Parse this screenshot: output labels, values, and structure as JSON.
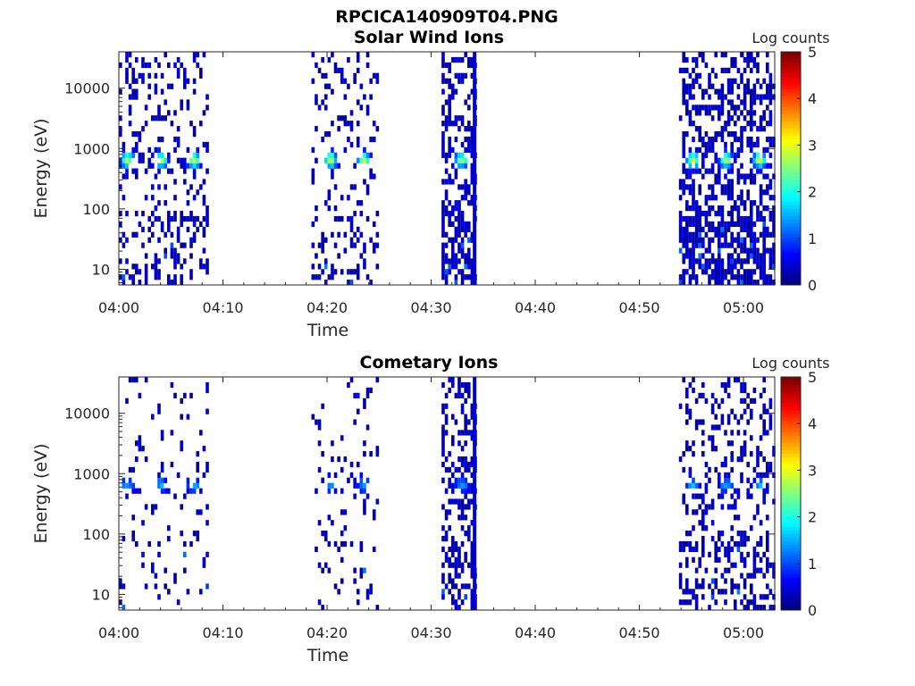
{
  "figure_title": "RPCICA140909T04.PNG",
  "chart_data": [
    {
      "type": "heatmap",
      "title": "Solar Wind Ions",
      "xlabel": "Time",
      "ylabel": "Energy (eV)",
      "x_ticks": [
        "04:00",
        "04:10",
        "04:20",
        "04:30",
        "04:40",
        "04:50",
        "05:00"
      ],
      "x_range_minutes": [
        0,
        63
      ],
      "y_scale": "log",
      "y_range": [
        5.5,
        40000
      ],
      "y_ticks": [
        {
          "value": 10,
          "label": "10"
        },
        {
          "value": 100,
          "label": "100"
        },
        {
          "value": 1000,
          "label": "1000"
        },
        {
          "value": 10000,
          "label": "10000"
        }
      ],
      "colorbar": {
        "label": "Log counts",
        "range": [
          0,
          5
        ],
        "ticks": [
          "0",
          "1",
          "2",
          "3",
          "4",
          "5"
        ],
        "colormap": "jet"
      },
      "bursts": [
        {
          "start_min": 0.0,
          "end_min": 8.5,
          "peaks_min": [
            0.7,
            3.9,
            7.1
          ],
          "peak_energy": 650,
          "peak_level": 2.5,
          "density": 0.35
        },
        {
          "start_min": 18.5,
          "end_min": 25.0,
          "peaks_min": [
            20.2,
            23.4
          ],
          "peak_energy": 650,
          "peak_level": 2.5,
          "density": 0.3
        },
        {
          "start_min": 31.0,
          "end_min": 34.3,
          "peaks_min": [
            32.8
          ],
          "peak_energy": 650,
          "peak_level": 2.3,
          "density": 0.75
        },
        {
          "start_min": 53.8,
          "end_min": 63.0,
          "peaks_min": [
            55.0,
            58.2,
            61.4
          ],
          "peak_energy": 650,
          "peak_level": 2.6,
          "density": 0.8
        }
      ]
    },
    {
      "type": "heatmap",
      "title": "Cometary Ions",
      "xlabel": "Time",
      "ylabel": "Energy (eV)",
      "x_ticks": [
        "04:00",
        "04:10",
        "04:20",
        "04:30",
        "04:40",
        "04:50",
        "05:00"
      ],
      "x_range_minutes": [
        0,
        63
      ],
      "y_scale": "log",
      "y_range": [
        5.5,
        40000
      ],
      "y_ticks": [
        {
          "value": 10,
          "label": "10"
        },
        {
          "value": 100,
          "label": "100"
        },
        {
          "value": 1000,
          "label": "1000"
        },
        {
          "value": 10000,
          "label": "10000"
        }
      ],
      "colorbar": {
        "label": "Log counts",
        "range": [
          0,
          5
        ],
        "ticks": [
          "0",
          "1",
          "2",
          "3",
          "4",
          "5"
        ],
        "colormap": "jet"
      },
      "bursts": [
        {
          "start_min": 0.0,
          "end_min": 8.5,
          "peaks_min": [
            0.7,
            3.9,
            7.1
          ],
          "peak_energy": 650,
          "peak_level": 1.2,
          "density": 0.15
        },
        {
          "start_min": 18.5,
          "end_min": 25.0,
          "peaks_min": [
            20.2,
            23.4
          ],
          "peak_energy": 650,
          "peak_level": 1.2,
          "density": 0.13
        },
        {
          "start_min": 31.0,
          "end_min": 34.3,
          "peaks_min": [
            32.8
          ],
          "peak_energy": 650,
          "peak_level": 1.1,
          "density": 0.55
        },
        {
          "start_min": 53.8,
          "end_min": 63.0,
          "peaks_min": [
            55.0,
            58.2,
            61.4
          ],
          "peak_energy": 650,
          "peak_level": 1.2,
          "density": 0.45
        }
      ]
    }
  ]
}
